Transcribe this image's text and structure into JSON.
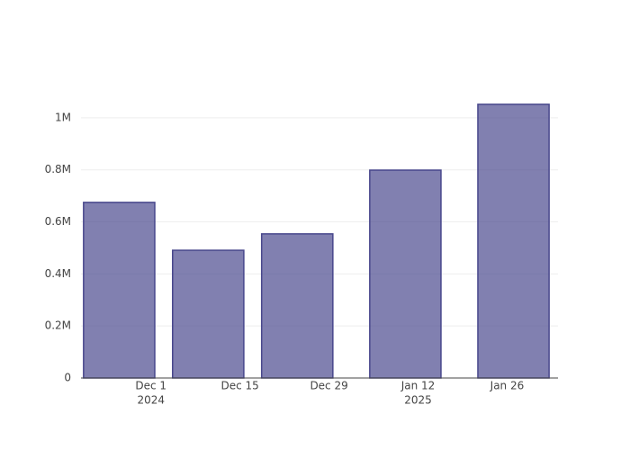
{
  "chart_data": {
    "type": "bar",
    "x": [
      "2024-11-26",
      "2024-12-10",
      "2024-12-24",
      "2025-01-10",
      "2025-01-27"
    ],
    "values": [
      675000,
      491000,
      554000,
      799000,
      1052000
    ],
    "color": "#4b4a8f",
    "edge_color": "#48478c",
    "xlim": [
      "2024-11-20",
      "2025-02-03"
    ],
    "xticks": [
      {
        "value": "2024-12-01",
        "label": "Dec 1",
        "year": "2024"
      },
      {
        "value": "2024-12-15",
        "label": "Dec 15"
      },
      {
        "value": "2024-12-29",
        "label": "Dec 29"
      },
      {
        "value": "2025-01-12",
        "label": "Jan 12",
        "year": "2025"
      },
      {
        "value": "2025-01-26",
        "label": "Jan 26"
      }
    ],
    "ylim": [
      0,
      1107000
    ],
    "yticks": [
      0,
      {
        "value": 200000,
        "label": "0.2M"
      },
      {
        "value": 400000,
        "label": "0.4M"
      },
      {
        "value": 600000,
        "label": "0.6M"
      },
      {
        "value": 800000,
        "label": "0.8M"
      },
      {
        "value": 1000000,
        "label": "1M"
      }
    ],
    "grid": true
  }
}
